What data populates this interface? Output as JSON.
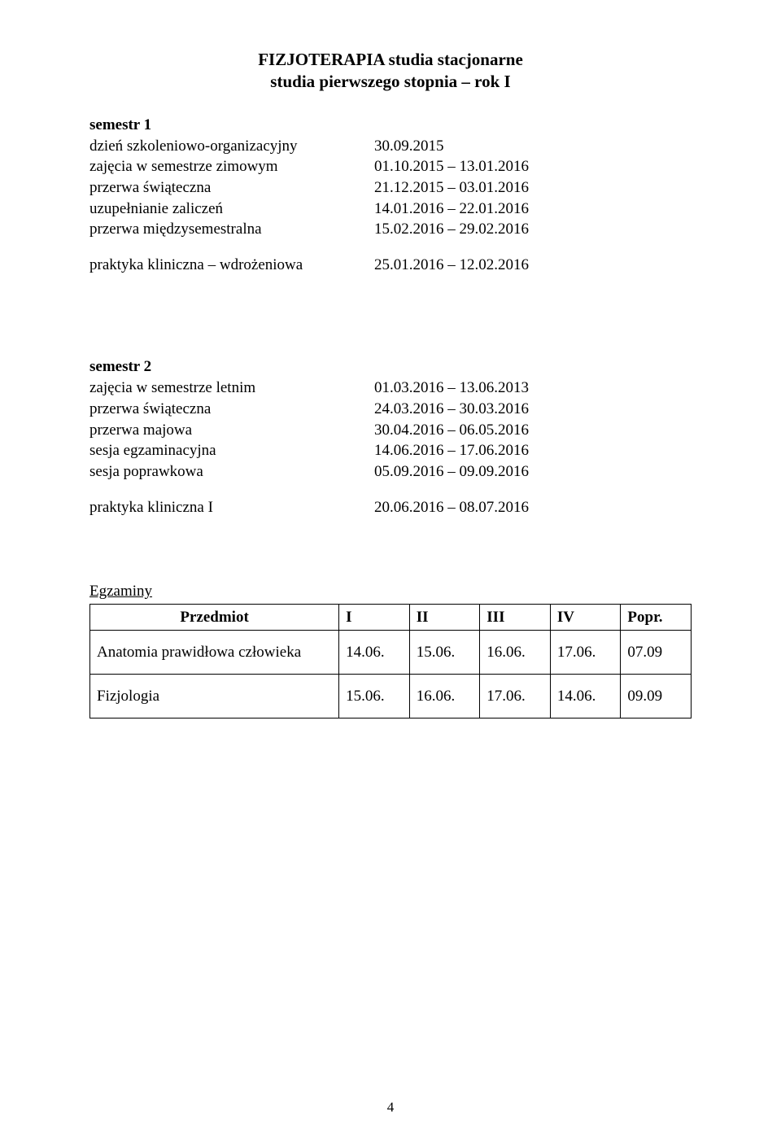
{
  "title": {
    "line1": "FIZJOTERAPIA  studia stacjonarne",
    "line2": "studia pierwszego stopnia – rok I"
  },
  "semestr1": {
    "heading": "semestr 1",
    "rows": [
      {
        "label": "dzień szkoleniowo-organizacyjny",
        "value": "30.09.2015"
      },
      {
        "label": "zajęcia w semestrze zimowym",
        "value": "01.10.2015 – 13.01.2016"
      },
      {
        "label": "przerwa świąteczna",
        "value": "21.12.2015 – 03.01.2016"
      },
      {
        "label": "uzupełnianie zaliczeń",
        "value": "14.01.2016 – 22.01.2016"
      },
      {
        "label": "przerwa międzysemestralna",
        "value": "15.02.2016 – 29.02.2016"
      }
    ],
    "praktyka": {
      "label": "praktyka kliniczna – wdrożeniowa",
      "value": "25.01.2016 – 12.02.2016"
    }
  },
  "semestr2": {
    "heading": "semestr 2",
    "rows": [
      {
        "label": "zajęcia w semestrze letnim",
        "value": "01.03.2016 – 13.06.2013"
      },
      {
        "label": "przerwa świąteczna",
        "value": "24.03.2016 – 30.03.2016"
      },
      {
        "label": "przerwa majowa",
        "value": "30.04.2016 – 06.05.2016"
      },
      {
        "label": "sesja egzaminacyjna",
        "value": "14.06.2016 – 17.06.2016"
      },
      {
        "label": "sesja poprawkowa",
        "value": "05.09.2016 – 09.09.2016"
      }
    ],
    "praktyka": {
      "label": "praktyka kliniczna I",
      "value": "20.06.2016 – 08.07.2016"
    }
  },
  "egzaminy": {
    "heading": "Egzaminy",
    "columns": [
      "Przedmiot",
      "I",
      "II",
      "III",
      "IV",
      "Popr."
    ],
    "rows": [
      [
        "Anatomia prawidłowa człowieka",
        "14.06.",
        "15.06.",
        "16.06.",
        "17.06.",
        "07.09"
      ],
      [
        "Fizjologia",
        "15.06.",
        "16.06.",
        "17.06.",
        "14.06.",
        "09.09"
      ]
    ]
  },
  "pageNumber": "4"
}
